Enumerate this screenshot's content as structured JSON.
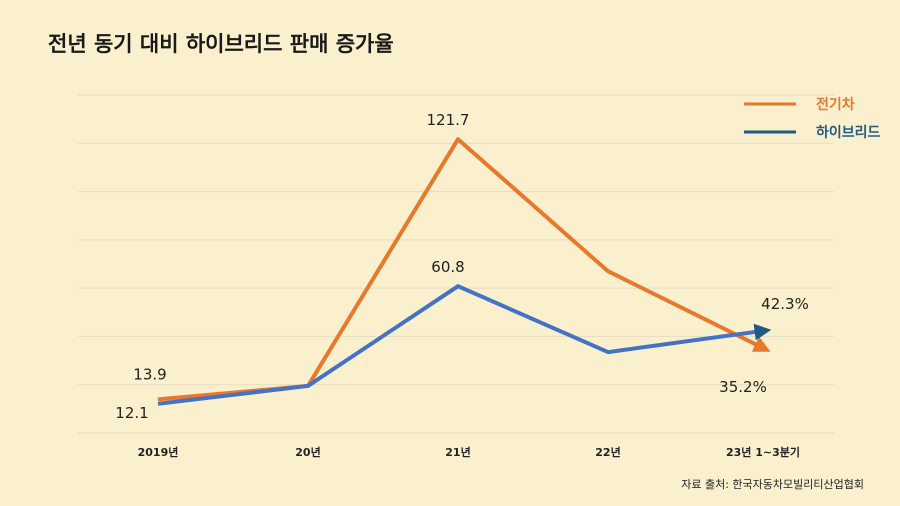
{
  "chart_data": {
    "type": "line",
    "title": "전년 동기 대비 하이브리드 판매 증가율",
    "categories": [
      "2019년",
      "20년",
      "21년",
      "22년",
      "23년 1~3분기"
    ],
    "series": [
      {
        "name": "전기차",
        "color": "#e8782c",
        "values": [
          13.9,
          19.5,
          121.7,
          67.0,
          35.2
        ],
        "labels": [
          "13.9",
          "",
          "121.7",
          "",
          "35.2%"
        ]
      },
      {
        "name": "하이브리드",
        "color": "#4472c4",
        "values": [
          12.1,
          19.5,
          60.8,
          33.5,
          42.3
        ],
        "labels": [
          "12.1",
          "",
          "60.8",
          "",
          "42.3%"
        ]
      }
    ],
    "legend_colors": [
      "#e8782c",
      "#1f5b82"
    ],
    "arrow_colors": [
      "#e8782c",
      "#1f5b82"
    ],
    "ylim": [
      0,
      140
    ],
    "grid": true,
    "legend_position": "top-right"
  },
  "source": "자료 출처: 한국자동차모빌리티산업협회"
}
